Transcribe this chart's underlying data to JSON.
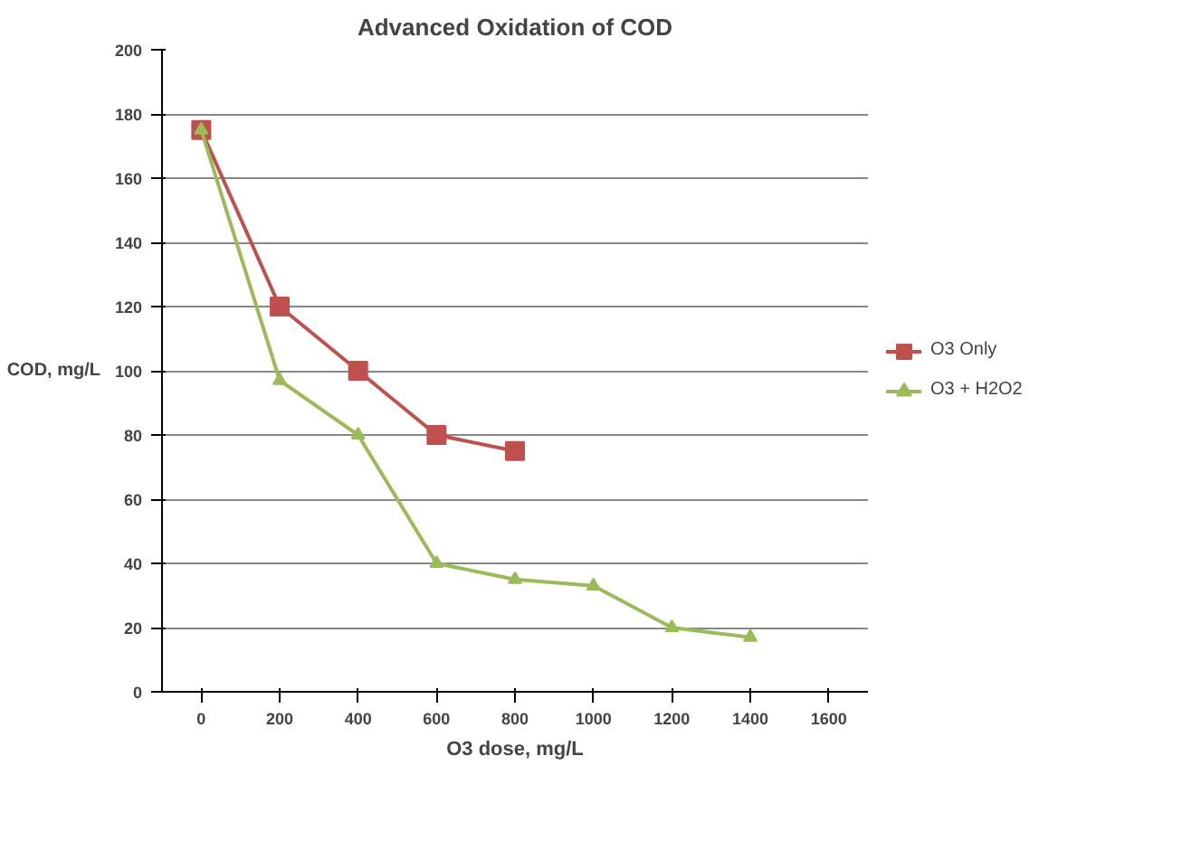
{
  "chart_data": {
    "type": "line",
    "title": "Advanced Oxidation of COD",
    "xlabel": "O3 dose, mg/L",
    "ylabel": "COD, mg/L",
    "xlim": [
      -100,
      1700
    ],
    "xticks": [
      0,
      200,
      400,
      600,
      800,
      1000,
      1200,
      1400,
      1600
    ],
    "ylim": [
      0,
      200
    ],
    "yticks": [
      0,
      20,
      40,
      60,
      80,
      100,
      120,
      140,
      160,
      180,
      200
    ],
    "grid": "y",
    "legend": "right",
    "line_style": "solid",
    "series": [
      {
        "name": "O3 Only",
        "color": "#c0504d",
        "marker": "square",
        "x": [
          0,
          200,
          400,
          600,
          800
        ],
        "values": [
          175,
          120,
          100,
          80,
          75
        ]
      },
      {
        "name": "O3 + H2O2",
        "color": "#9bbb59",
        "marker": "triangle",
        "x": [
          0,
          200,
          400,
          600,
          800,
          1000,
          1200,
          1400
        ],
        "values": [
          175,
          97,
          80,
          40,
          35,
          33,
          20,
          17
        ]
      }
    ]
  }
}
